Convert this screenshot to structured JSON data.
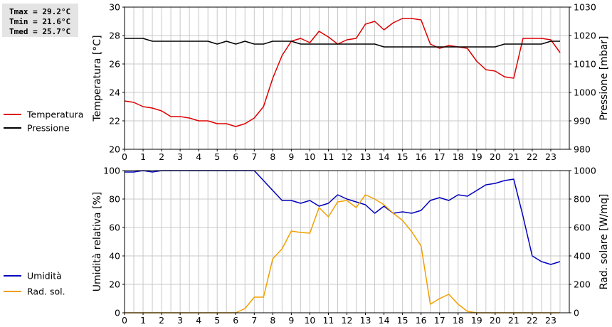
{
  "stats": {
    "tmax": "Tmax = 29.2°C",
    "tmin": "Tmin = 21.6°C",
    "tmed": "Tmed = 25.7°C"
  },
  "colors": {
    "temperature": "#dd0000",
    "pressure": "#000000",
    "humidity": "#0000bb",
    "radiation": "#f0a000",
    "grid": "#c8c8c8"
  },
  "chart_data": [
    {
      "type": "line",
      "grid": true,
      "xlim": [
        0,
        24
      ],
      "x_ticks": [
        0,
        1,
        2,
        3,
        4,
        5,
        6,
        7,
        8,
        9,
        10,
        11,
        12,
        13,
        14,
        15,
        16,
        17,
        18,
        19,
        20,
        21,
        22,
        23
      ],
      "ylabel": "Temperatura [°C]",
      "ylim": [
        20,
        30
      ],
      "y_ticks": [
        20,
        22,
        24,
        26,
        28,
        30
      ],
      "y2label": "Pressione [mbar]",
      "y2lim": [
        980,
        1030
      ],
      "y2_ticks": [
        980,
        990,
        1000,
        1010,
        1020,
        1030
      ],
      "legend_position": "left",
      "series": [
        {
          "name": "Temperatura",
          "axis": "left",
          "color": "#dd0000",
          "x": [
            0,
            0.5,
            1,
            1.5,
            2,
            2.5,
            3,
            3.5,
            4,
            4.5,
            5,
            5.5,
            6,
            6.5,
            7,
            7.5,
            8,
            8.5,
            9,
            9.5,
            10,
            10.5,
            11,
            11.5,
            12,
            12.5,
            13,
            13.5,
            14,
            14.5,
            15,
            15.5,
            16,
            16.5,
            17,
            17.5,
            18,
            18.5,
            19,
            19.5,
            20,
            20.5,
            21,
            21.5,
            22,
            22.5,
            23,
            23.5
          ],
          "y": [
            23.4,
            23.3,
            23.0,
            22.9,
            22.7,
            22.3,
            22.3,
            22.2,
            22.0,
            22.0,
            21.8,
            21.8,
            21.6,
            21.8,
            22.2,
            23.0,
            25.0,
            26.6,
            27.6,
            27.8,
            27.5,
            28.3,
            27.9,
            27.4,
            27.7,
            27.8,
            28.8,
            29.0,
            28.4,
            28.9,
            29.2,
            29.2,
            29.1,
            27.4,
            27.1,
            27.3,
            27.2,
            27.1,
            26.2,
            25.6,
            25.5,
            25.1,
            25.0,
            27.8,
            27.8,
            27.8,
            27.7,
            26.8
          ]
        },
        {
          "name": "Pressione",
          "axis": "right",
          "color": "#000000",
          "x": [
            0,
            0.5,
            1,
            1.5,
            2,
            2.5,
            3,
            3.5,
            4,
            4.5,
            5,
            5.5,
            6,
            6.5,
            7,
            7.5,
            8,
            8.5,
            9,
            9.5,
            10,
            10.5,
            11,
            11.5,
            12,
            12.5,
            13,
            13.5,
            14,
            14.5,
            15,
            15.5,
            16,
            16.5,
            17,
            17.5,
            18,
            18.5,
            19,
            19.5,
            20,
            20.5,
            21,
            21.5,
            22,
            22.5,
            23,
            23.5
          ],
          "y": [
            1019,
            1019,
            1019,
            1018,
            1018,
            1018,
            1018,
            1018,
            1018,
            1018,
            1017,
            1018,
            1017,
            1018,
            1017,
            1017,
            1018,
            1018,
            1018,
            1017,
            1017,
            1017,
            1017,
            1017,
            1017,
            1017,
            1017,
            1017,
            1016,
            1016,
            1016,
            1016,
            1016,
            1016,
            1016,
            1016,
            1016,
            1016,
            1016,
            1016,
            1016,
            1017,
            1017,
            1017,
            1017,
            1017,
            1018,
            1018
          ]
        }
      ]
    },
    {
      "type": "line",
      "grid": true,
      "xlim": [
        0,
        24
      ],
      "x_ticks": [
        0,
        1,
        2,
        3,
        4,
        5,
        6,
        7,
        8,
        9,
        10,
        11,
        12,
        13,
        14,
        15,
        16,
        17,
        18,
        19,
        20,
        21,
        22,
        23
      ],
      "ylabel": "Umidità relativa [%]",
      "ylim": [
        0,
        100
      ],
      "y_ticks": [
        0,
        20,
        40,
        60,
        80,
        100
      ],
      "y2label": "Rad. solare [W/mq]",
      "y2lim": [
        0,
        1000
      ],
      "y2_ticks": [
        0,
        200,
        400,
        600,
        800,
        1000
      ],
      "legend_position": "left",
      "series": [
        {
          "name": "Umidità",
          "axis": "left",
          "color": "#0000bb",
          "x": [
            0,
            0.5,
            1,
            1.5,
            2,
            2.5,
            3,
            3.5,
            4,
            4.5,
            5,
            5.5,
            6,
            6.5,
            7,
            7.5,
            8,
            8.5,
            9,
            9.5,
            10,
            10.5,
            11,
            11.5,
            12,
            12.5,
            13,
            13.5,
            14,
            14.5,
            15,
            15.5,
            16,
            16.5,
            17,
            17.5,
            18,
            18.5,
            19,
            19.5,
            20,
            20.5,
            21,
            21.5,
            22,
            22.5,
            23,
            23.5
          ],
          "y": [
            99,
            99,
            100,
            99,
            100,
            100,
            100,
            100,
            100,
            100,
            100,
            100,
            100,
            100,
            100,
            93,
            86,
            79,
            79,
            77,
            79,
            75,
            77,
            83,
            80,
            78,
            76,
            70,
            75,
            70,
            71,
            70,
            72,
            79,
            81,
            79,
            83,
            82,
            86,
            90,
            91,
            93,
            94,
            68,
            40,
            36,
            34,
            36
          ]
        },
        {
          "name": "Rad. sol.",
          "axis": "right",
          "color": "#f0a000",
          "x": [
            0,
            0.5,
            1,
            1.5,
            2,
            2.5,
            3,
            3.5,
            4,
            4.5,
            5,
            5.5,
            6,
            6.5,
            7,
            7.5,
            8,
            8.5,
            9,
            9.5,
            10,
            10.5,
            11,
            11.5,
            12,
            12.5,
            13,
            13.5,
            14,
            14.5,
            15,
            15.5,
            16,
            16.5,
            17,
            17.5,
            18,
            18.5,
            19,
            19.5,
            20,
            20.5,
            21,
            21.5,
            22,
            22.5,
            23,
            23.5
          ],
          "y": [
            0,
            0,
            0,
            0,
            0,
            0,
            0,
            0,
            0,
            0,
            0,
            0,
            0,
            30,
            110,
            110,
            380,
            450,
            575,
            565,
            560,
            740,
            675,
            780,
            790,
            740,
            830,
            800,
            760,
            700,
            650,
            570,
            470,
            60,
            100,
            130,
            60,
            10,
            0,
            0,
            0,
            0,
            0,
            0,
            0,
            0,
            0,
            0
          ]
        }
      ]
    }
  ]
}
